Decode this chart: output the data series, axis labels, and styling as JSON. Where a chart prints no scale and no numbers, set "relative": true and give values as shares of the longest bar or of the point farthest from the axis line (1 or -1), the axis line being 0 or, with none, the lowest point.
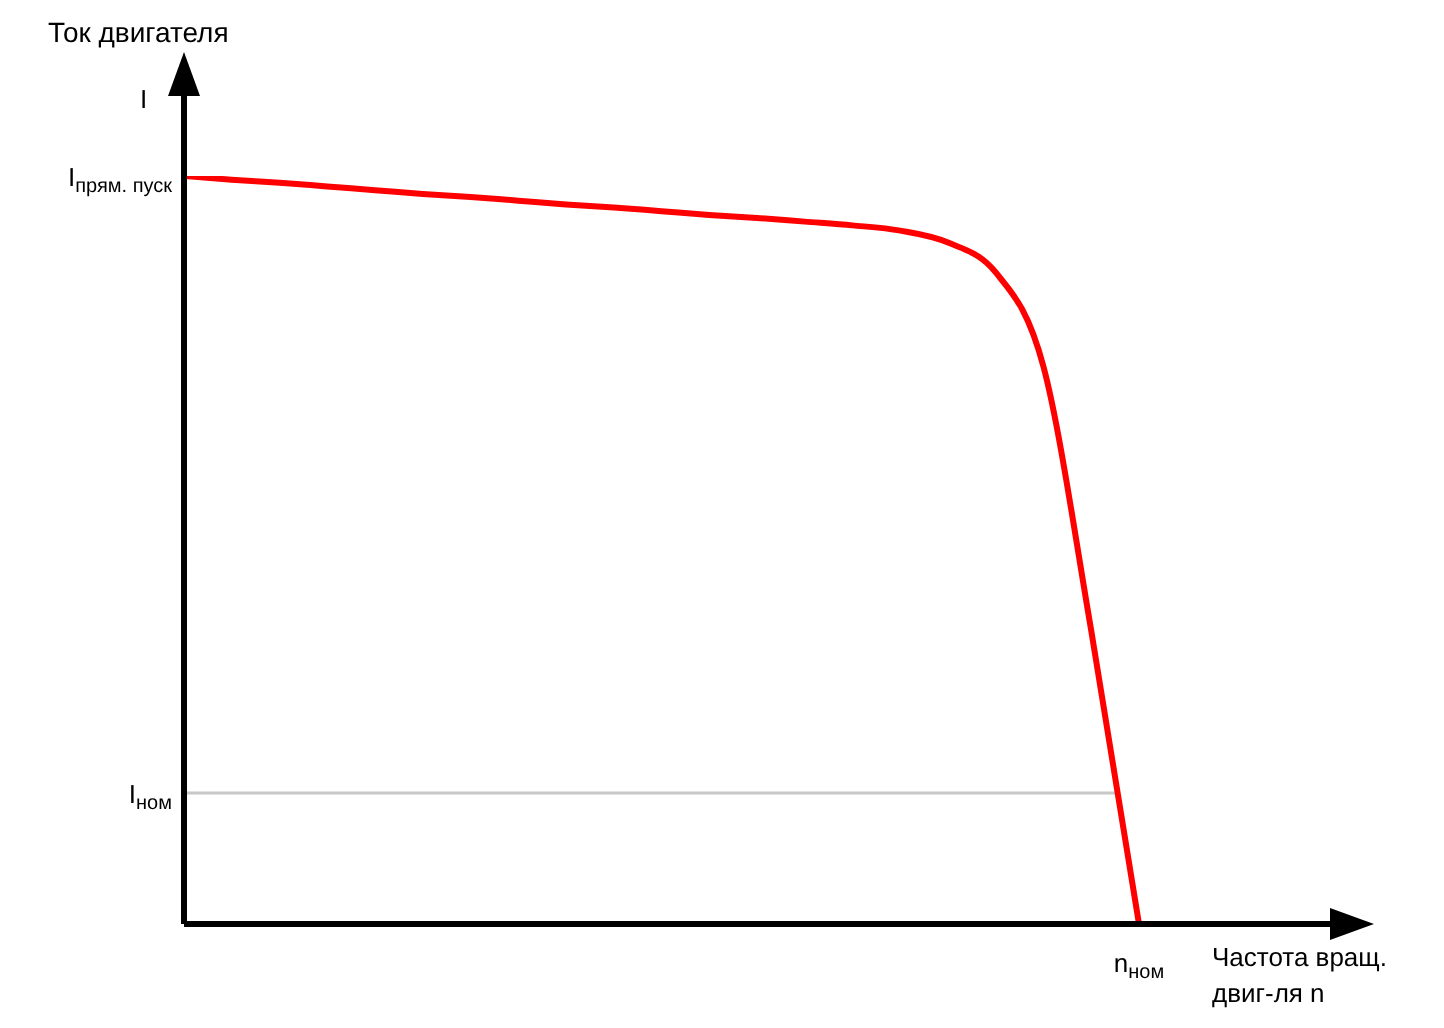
{
  "chart_data": {
    "type": "line",
    "relative": true,
    "title": "Ток двигателя",
    "ylabel": "I",
    "xlabel": "Частота вращ.\nдвиг-ля n",
    "categories": [
      null,
      null,
      null,
      null,
      null,
      null,
      null,
      null,
      null,
      null,
      null,
      null,
      null,
      null,
      null,
      null,
      null,
      null,
      null,
      null,
      null,
      null,
      null,
      null,
      null
    ],
    "series": [
      {
        "color": "#ff0000",
        "values": [
          1.0,
          0.995,
          0.991,
          0.986,
          0.981,
          0.976,
          0.972,
          0.967,
          0.962,
          0.958,
          0.953,
          0.948,
          0.944,
          0.939,
          0.934,
          0.927,
          0.911,
          0.871,
          0.745,
          0.392,
          0,
          null,
          null,
          null,
          null
        ]
      }
    ],
    "annotations": [
      "I$_{прям. пуск}$",
      "n$_{ном}$"
    ],
    "ref_lines": [
      {
        "axis": "y",
        "value": 0.175,
        "label": "I$_{ном}$",
        "color": "#c8c8c8"
      }
    ],
    "legend": false,
    "marker": "none",
    "line_style": "solid"
  }
}
